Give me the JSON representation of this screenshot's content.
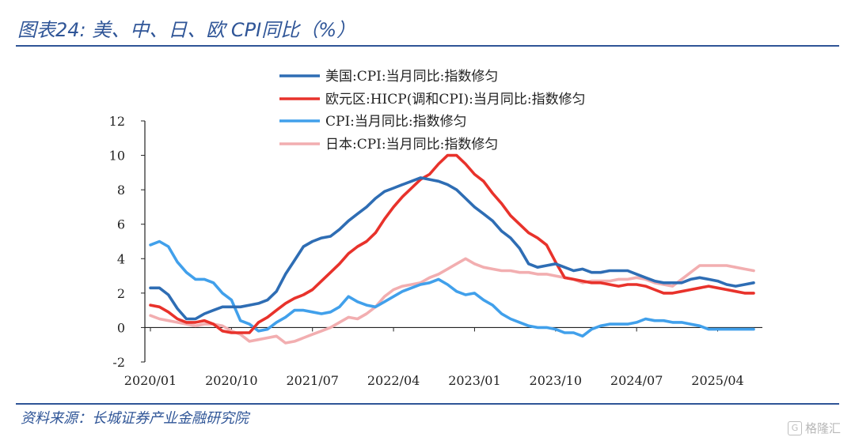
{
  "header": {
    "title": "图表24:  美、中、日、欧 CPI同比（%）"
  },
  "footer": {
    "source": "资料来源：长城证券产业金融研究院",
    "watermark": "格隆汇"
  },
  "chart_data": {
    "type": "line",
    "x_labels": [
      "2020/01",
      "2020/10",
      "2021/07",
      "2022/04",
      "2023/01",
      "2023/10",
      "2024/07",
      "2025/04"
    ],
    "x_label_indices": [
      0,
      9,
      18,
      27,
      36,
      45,
      54,
      63
    ],
    "yticks": [
      -2,
      0,
      2,
      4,
      6,
      8,
      10,
      12
    ],
    "ylim": [
      -2,
      12
    ],
    "legend_position": "top-center",
    "grid": false,
    "series": [
      {
        "name": "美国:CPI:当月同比:指数修匀",
        "color": "#2E6DB4",
        "values": [
          2.3,
          2.3,
          1.9,
          1.1,
          0.5,
          0.5,
          0.8,
          1.0,
          1.2,
          1.2,
          1.2,
          1.3,
          1.4,
          1.6,
          2.1,
          3.1,
          3.9,
          4.7,
          5.0,
          5.2,
          5.3,
          5.7,
          6.2,
          6.6,
          7.0,
          7.5,
          7.9,
          8.1,
          8.3,
          8.5,
          8.7,
          8.6,
          8.5,
          8.3,
          8.0,
          7.5,
          7.0,
          6.6,
          6.2,
          5.6,
          5.2,
          4.6,
          3.7,
          3.5,
          3.6,
          3.7,
          3.5,
          3.3,
          3.4,
          3.2,
          3.2,
          3.3,
          3.3,
          3.3,
          3.1,
          2.9,
          2.7,
          2.6,
          2.6,
          2.6,
          2.8,
          2.9,
          2.8,
          2.7,
          2.5,
          2.4,
          2.5,
          2.6
        ]
      },
      {
        "name": "欧元区:HICP(调和CPI):当月同比:指数修匀",
        "color": "#E8322B",
        "values": [
          1.3,
          1.2,
          0.9,
          0.5,
          0.3,
          0.3,
          0.4,
          0.2,
          -0.2,
          -0.3,
          -0.3,
          -0.3,
          0.3,
          0.6,
          1.0,
          1.4,
          1.7,
          1.9,
          2.2,
          2.7,
          3.2,
          3.7,
          4.3,
          4.7,
          5.0,
          5.5,
          6.3,
          7.0,
          7.6,
          8.1,
          8.6,
          8.9,
          9.5,
          10.0,
          10.0,
          9.5,
          8.9,
          8.5,
          7.8,
          7.2,
          6.5,
          6.0,
          5.5,
          5.2,
          4.8,
          3.8,
          2.9,
          2.8,
          2.7,
          2.6,
          2.6,
          2.5,
          2.4,
          2.5,
          2.5,
          2.4,
          2.2,
          2.0,
          2.0,
          2.1,
          2.2,
          2.3,
          2.4,
          2.3,
          2.2,
          2.1,
          2.0,
          2.0
        ]
      },
      {
        "name": "CPI:当月同比:指数修匀",
        "color": "#41A0EB",
        "values": [
          4.8,
          5.0,
          4.7,
          3.8,
          3.2,
          2.8,
          2.8,
          2.6,
          2.0,
          1.6,
          0.4,
          0.2,
          -0.2,
          -0.1,
          0.3,
          0.6,
          1.0,
          1.0,
          0.9,
          0.8,
          0.9,
          1.2,
          1.8,
          1.5,
          1.3,
          1.2,
          1.5,
          1.8,
          2.1,
          2.3,
          2.5,
          2.6,
          2.8,
          2.5,
          2.1,
          1.9,
          2.0,
          1.6,
          1.3,
          0.8,
          0.5,
          0.3,
          0.1,
          0.0,
          0.0,
          -0.1,
          -0.3,
          -0.3,
          -0.5,
          -0.1,
          0.1,
          0.2,
          0.2,
          0.2,
          0.3,
          0.5,
          0.4,
          0.4,
          0.3,
          0.3,
          0.2,
          0.1,
          -0.1,
          -0.1,
          -0.1,
          -0.1,
          -0.1,
          -0.1
        ]
      },
      {
        "name": "日本:CPI:当月同比:指数修匀",
        "color": "#F2AEB0",
        "values": [
          0.7,
          0.5,
          0.4,
          0.3,
          0.2,
          0.1,
          0.2,
          0.2,
          0.1,
          -0.2,
          -0.4,
          -0.8,
          -0.7,
          -0.6,
          -0.5,
          -0.9,
          -0.8,
          -0.6,
          -0.4,
          -0.2,
          0.0,
          0.3,
          0.6,
          0.5,
          0.8,
          1.2,
          1.8,
          2.2,
          2.4,
          2.5,
          2.6,
          2.9,
          3.1,
          3.4,
          3.7,
          4.0,
          3.7,
          3.5,
          3.4,
          3.3,
          3.3,
          3.2,
          3.2,
          3.1,
          3.1,
          3.0,
          2.9,
          2.8,
          2.6,
          2.7,
          2.7,
          2.7,
          2.8,
          2.8,
          2.9,
          2.8,
          2.6,
          2.5,
          2.4,
          2.8,
          3.2,
          3.6,
          3.6,
          3.6,
          3.6,
          3.5,
          3.4,
          3.3
        ]
      }
    ]
  }
}
